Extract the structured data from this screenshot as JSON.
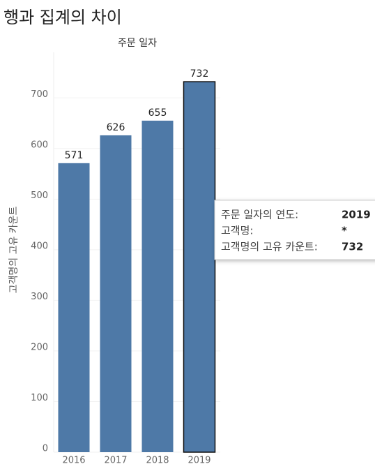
{
  "chart_data": {
    "type": "bar",
    "title": "행과 집계의 차이",
    "x_label": "주문 일자",
    "y_label": "고객명의 고유 카운트",
    "categories": [
      "2016",
      "2017",
      "2018",
      "2019"
    ],
    "values": [
      571,
      626,
      655,
      732
    ],
    "color": "#4e79a7",
    "ylim": [
      0,
      790
    ],
    "yticks": [
      0,
      100,
      200,
      300,
      400,
      500,
      600,
      700
    ],
    "grid": true,
    "tooltip": {
      "rows": [
        [
          "주문 일자의 연도:",
          "2019"
        ],
        [
          "고객명:",
          "*"
        ],
        [
          "고객명의 고유 카운트:",
          "732"
        ]
      ]
    }
  }
}
